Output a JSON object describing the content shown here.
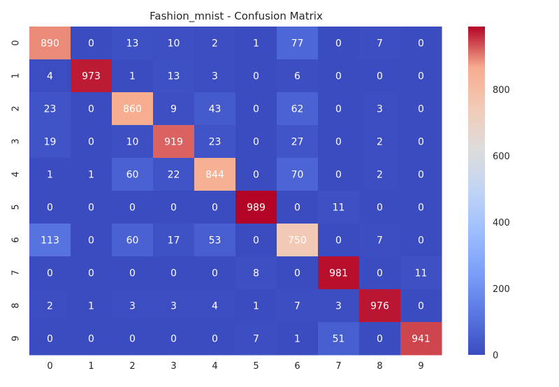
{
  "chart_data": {
    "type": "heatmap",
    "title": "Fashion_mnist - Confusion Matrix",
    "xlabel": "",
    "ylabel": "",
    "x_categories": [
      "0",
      "1",
      "2",
      "3",
      "4",
      "5",
      "6",
      "7",
      "8",
      "9"
    ],
    "y_categories": [
      "0",
      "1",
      "2",
      "3",
      "4",
      "5",
      "6",
      "7",
      "8",
      "9"
    ],
    "values": [
      [
        890,
        0,
        13,
        10,
        2,
        1,
        77,
        0,
        7,
        0
      ],
      [
        4,
        973,
        1,
        13,
        3,
        0,
        6,
        0,
        0,
        0
      ],
      [
        23,
        0,
        860,
        9,
        43,
        0,
        62,
        0,
        3,
        0
      ],
      [
        19,
        0,
        10,
        919,
        23,
        0,
        27,
        0,
        2,
        0
      ],
      [
        1,
        1,
        60,
        22,
        844,
        0,
        70,
        0,
        2,
        0
      ],
      [
        0,
        0,
        0,
        0,
        0,
        989,
        0,
        11,
        0,
        0
      ],
      [
        113,
        0,
        60,
        17,
        53,
        0,
        750,
        0,
        7,
        0
      ],
      [
        0,
        0,
        0,
        0,
        0,
        8,
        0,
        981,
        0,
        11
      ],
      [
        2,
        1,
        3,
        3,
        4,
        1,
        7,
        3,
        976,
        0
      ],
      [
        0,
        0,
        0,
        0,
        0,
        7,
        1,
        51,
        0,
        941
      ]
    ],
    "colormap": "coolwarm",
    "colorbar": {
      "min": 0,
      "max": 989,
      "ticks": [
        0,
        200,
        400,
        600,
        800
      ]
    },
    "annotations": true,
    "grid": false
  }
}
